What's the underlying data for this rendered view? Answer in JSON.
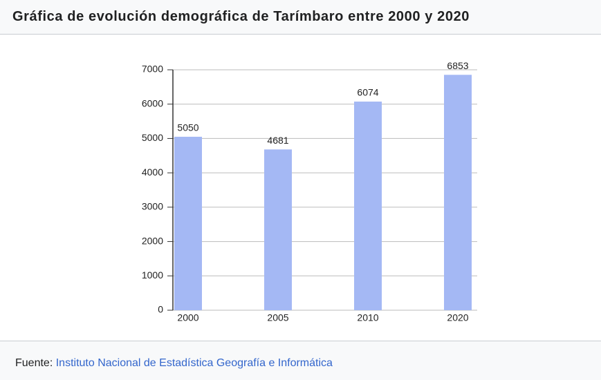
{
  "chart_data": {
    "type": "bar",
    "title": "Gráfica de evolución demográfica de Tarímbaro entre 2000 y 2020",
    "categories": [
      "2000",
      "2005",
      "2010",
      "2020"
    ],
    "values": [
      5050,
      4681,
      6074,
      6853
    ],
    "color": "#a4b8f4",
    "ylim": [
      0,
      7000
    ],
    "yticks": [
      0,
      1000,
      2000,
      3000,
      4000,
      5000,
      6000,
      7000
    ],
    "grid": true
  },
  "footer": {
    "label": "Fuente:",
    "source": "Instituto Nacional de Estadística Geografía e Informática"
  }
}
